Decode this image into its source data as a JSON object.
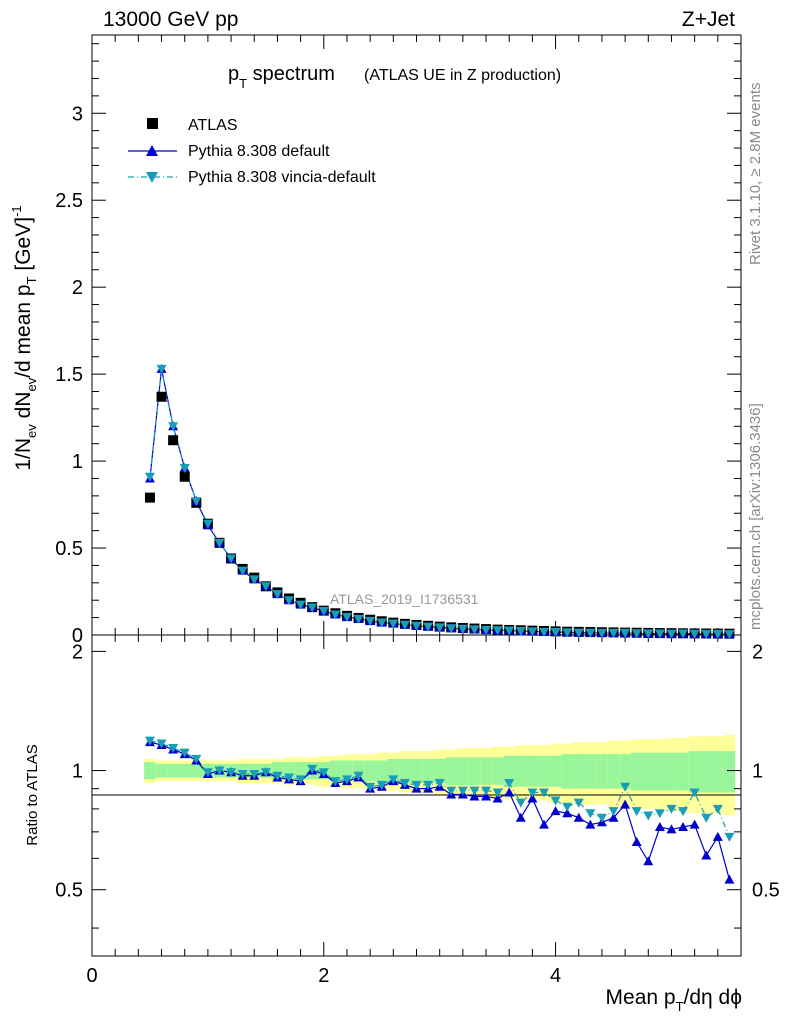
{
  "header": {
    "left": "13000 GeV pp",
    "right": "Z+Jet"
  },
  "title": {
    "main": "p",
    "main_sub": "T",
    "main_rest": " spectrum",
    "extra": "(ATLAS UE in Z production)"
  },
  "side": {
    "rivet": "Rivet 3.1.10, ≥ 2.8M events",
    "mcplots": "mcplots.cern.ch [arXiv:1306.3436]"
  },
  "watermark": "ATLAS_2019_I1736531",
  "legend": [
    {
      "label": "ATLAS",
      "marker": "square",
      "color": "#000000"
    },
    {
      "label": "Pythia 8.308 default",
      "marker": "triangle-up",
      "color": "#0000cc"
    },
    {
      "label": "Pythia 8.308 vincia-default",
      "marker": "triangle-down",
      "color": "#1a9eb8"
    }
  ],
  "axes": {
    "ylabel_main": "1/N_ev dN_ev/d mean p_T [GeV]^-1",
    "ylabel_ratio": "Ratio to ATLAS",
    "xlabel": "Mean p_T/dη dϕ",
    "x_ticks": [
      "0",
      "2",
      "4"
    ],
    "y_ticks_main": [
      "0",
      "0.5",
      "1",
      "1.5",
      "2",
      "2.5",
      "3"
    ],
    "y_ticks_ratio": [
      "0.5",
      "1",
      "2"
    ]
  },
  "chart_data": {
    "type": "scatter",
    "x": [
      0.5,
      0.6,
      0.7,
      0.8,
      0.9,
      1.0,
      1.1,
      1.2,
      1.3,
      1.4,
      1.5,
      1.6,
      1.7,
      1.8,
      1.9,
      2.0,
      2.1,
      2.2,
      2.3,
      2.4,
      2.5,
      2.6,
      2.7,
      2.8,
      2.9,
      3.0,
      3.1,
      3.2,
      3.3,
      3.4,
      3.5,
      3.6,
      3.7,
      3.8,
      3.9,
      4.0,
      4.1,
      4.2,
      4.3,
      4.4,
      4.5,
      4.6,
      4.7,
      4.8,
      4.9,
      5.0,
      5.1,
      5.2,
      5.3,
      5.4,
      5.5
    ],
    "xlim": [
      0,
      5.6
    ],
    "ylim_main": [
      0,
      3.45
    ],
    "ylim_ratio": [
      0.34,
      2.2
    ],
    "series": [
      {
        "name": "ATLAS",
        "values": [
          0.79,
          1.37,
          1.12,
          0.91,
          0.76,
          0.64,
          0.53,
          0.44,
          0.38,
          0.33,
          0.28,
          0.245,
          0.21,
          0.185,
          0.16,
          0.14,
          0.125,
          0.11,
          0.098,
          0.088,
          0.079,
          0.071,
          0.064,
          0.058,
          0.053,
          0.048,
          0.044,
          0.04,
          0.037,
          0.034,
          0.031,
          0.029,
          0.027,
          0.025,
          0.023,
          0.021,
          0.019,
          0.018,
          0.017,
          0.016,
          0.015,
          0.014,
          0.013,
          0.012,
          0.011,
          0.0105,
          0.0098,
          0.0092,
          0.0086,
          0.008,
          0.0075
        ]
      },
      {
        "name": "Pythia 8.308 default",
        "values": [
          0.9,
          1.53,
          1.2,
          0.96,
          0.77,
          0.63,
          0.53,
          0.44,
          0.37,
          0.32,
          0.28,
          0.235,
          0.2,
          0.175,
          0.158,
          0.137,
          0.118,
          0.103,
          0.093,
          0.08,
          0.071,
          0.066,
          0.059,
          0.052,
          0.048,
          0.043,
          0.039,
          0.035,
          0.032,
          0.029,
          0.026,
          0.026,
          0.021,
          0.021,
          0.017,
          0.017,
          0.015,
          0.013,
          0.012,
          0.012,
          0.011,
          0.011,
          0.009,
          0.007,
          0.008,
          0.0075,
          0.007,
          0.0065,
          0.0055,
          0.0055,
          0.004
        ]
      },
      {
        "name": "Pythia 8.308 vincia-default",
        "values": [
          0.91,
          1.53,
          1.2,
          0.96,
          0.77,
          0.64,
          0.53,
          0.44,
          0.37,
          0.32,
          0.28,
          0.235,
          0.2,
          0.175,
          0.158,
          0.138,
          0.118,
          0.104,
          0.093,
          0.081,
          0.072,
          0.066,
          0.059,
          0.053,
          0.048,
          0.044,
          0.039,
          0.035,
          0.032,
          0.029,
          0.027,
          0.026,
          0.023,
          0.021,
          0.018,
          0.017,
          0.015,
          0.014,
          0.013,
          0.012,
          0.012,
          0.012,
          0.01,
          0.009,
          0.0085,
          0.008,
          0.0085,
          0.007,
          0.0065,
          0.0065,
          0.005
        ]
      }
    ],
    "ratio": {
      "default": [
        1.18,
        1.16,
        1.13,
        1.1,
        1.06,
        0.98,
        1.0,
        0.99,
        0.97,
        0.97,
        0.99,
        0.96,
        0.95,
        0.94,
        1.0,
        0.98,
        0.93,
        0.94,
        0.96,
        0.9,
        0.91,
        0.94,
        0.92,
        0.9,
        0.9,
        0.91,
        0.87,
        0.87,
        0.86,
        0.86,
        0.85,
        0.88,
        0.76,
        0.85,
        0.73,
        0.79,
        0.78,
        0.76,
        0.73,
        0.74,
        0.76,
        0.82,
        0.66,
        0.59,
        0.72,
        0.71,
        0.72,
        0.73,
        0.61,
        0.68,
        0.53
      ],
      "vincia": [
        1.19,
        1.17,
        1.14,
        1.11,
        1.07,
        0.99,
        1.0,
        0.99,
        0.98,
        0.98,
        0.99,
        0.97,
        0.96,
        0.95,
        1.01,
        0.99,
        0.94,
        0.95,
        0.97,
        0.91,
        0.92,
        0.95,
        0.93,
        0.92,
        0.92,
        0.93,
        0.89,
        0.89,
        0.89,
        0.89,
        0.88,
        0.93,
        0.83,
        0.88,
        0.88,
        0.84,
        0.81,
        0.83,
        0.78,
        0.76,
        0.79,
        0.91,
        0.79,
        0.77,
        0.78,
        0.8,
        0.79,
        0.88,
        0.76,
        0.8,
        0.68
      ],
      "band_inner": [
        0.05,
        0.04,
        0.04,
        0.04,
        0.04,
        0.04,
        0.04,
        0.04,
        0.04,
        0.04,
        0.04,
        0.05,
        0.05,
        0.05,
        0.05,
        0.05,
        0.06,
        0.06,
        0.06,
        0.06,
        0.06,
        0.07,
        0.07,
        0.07,
        0.07,
        0.07,
        0.08,
        0.08,
        0.08,
        0.08,
        0.08,
        0.09,
        0.09,
        0.09,
        0.09,
        0.09,
        0.1,
        0.1,
        0.1,
        0.1,
        0.1,
        0.1,
        0.11,
        0.11,
        0.11,
        0.11,
        0.11,
        0.12,
        0.12,
        0.12,
        0.12
      ],
      "band_outer": [
        0.07,
        0.06,
        0.06,
        0.06,
        0.06,
        0.06,
        0.06,
        0.06,
        0.07,
        0.07,
        0.07,
        0.07,
        0.08,
        0.08,
        0.08,
        0.09,
        0.09,
        0.1,
        0.1,
        0.1,
        0.11,
        0.11,
        0.12,
        0.12,
        0.12,
        0.13,
        0.13,
        0.14,
        0.14,
        0.14,
        0.15,
        0.15,
        0.16,
        0.16,
        0.16,
        0.17,
        0.17,
        0.18,
        0.18,
        0.18,
        0.19,
        0.19,
        0.2,
        0.2,
        0.2,
        0.21,
        0.21,
        0.22,
        0.22,
        0.22,
        0.23
      ],
      "colors": {
        "inner": "#99f599",
        "outer": "#ffff99"
      }
    }
  }
}
